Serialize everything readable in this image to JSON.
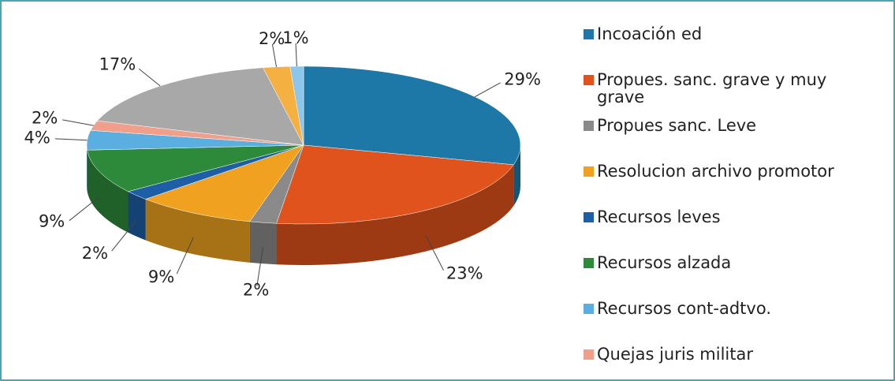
{
  "chart_data": {
    "type": "pie3d",
    "categories": [
      "Incoación ed",
      "Propues.   sanc. grave y muy grave",
      "Propues sanc. Leve",
      "Resolucion archivo promotor",
      "Recursos  leves",
      "Recursos alzada",
      "Recursos cont-adtvo.",
      "Quejas juris militar",
      null,
      null,
      null
    ],
    "values": [
      29,
      23,
      2,
      9,
      2,
      9,
      4,
      2,
      17,
      2,
      1
    ],
    "value_labels": [
      "29%",
      "23%",
      "2%",
      "9%",
      "2%",
      "9%",
      "4%",
      "2%",
      "17%",
      "2%",
      "1%"
    ],
    "colors": [
      "#1d78a8",
      "#e0531d",
      "#8a8a8a",
      "#efa11f",
      "#1e5ea6",
      "#2c8a3a",
      "#5aaee0",
      "#f0a08a",
      "#a8a8a8",
      "#f4b040",
      "#8cc6ea"
    ],
    "legend": "right"
  }
}
